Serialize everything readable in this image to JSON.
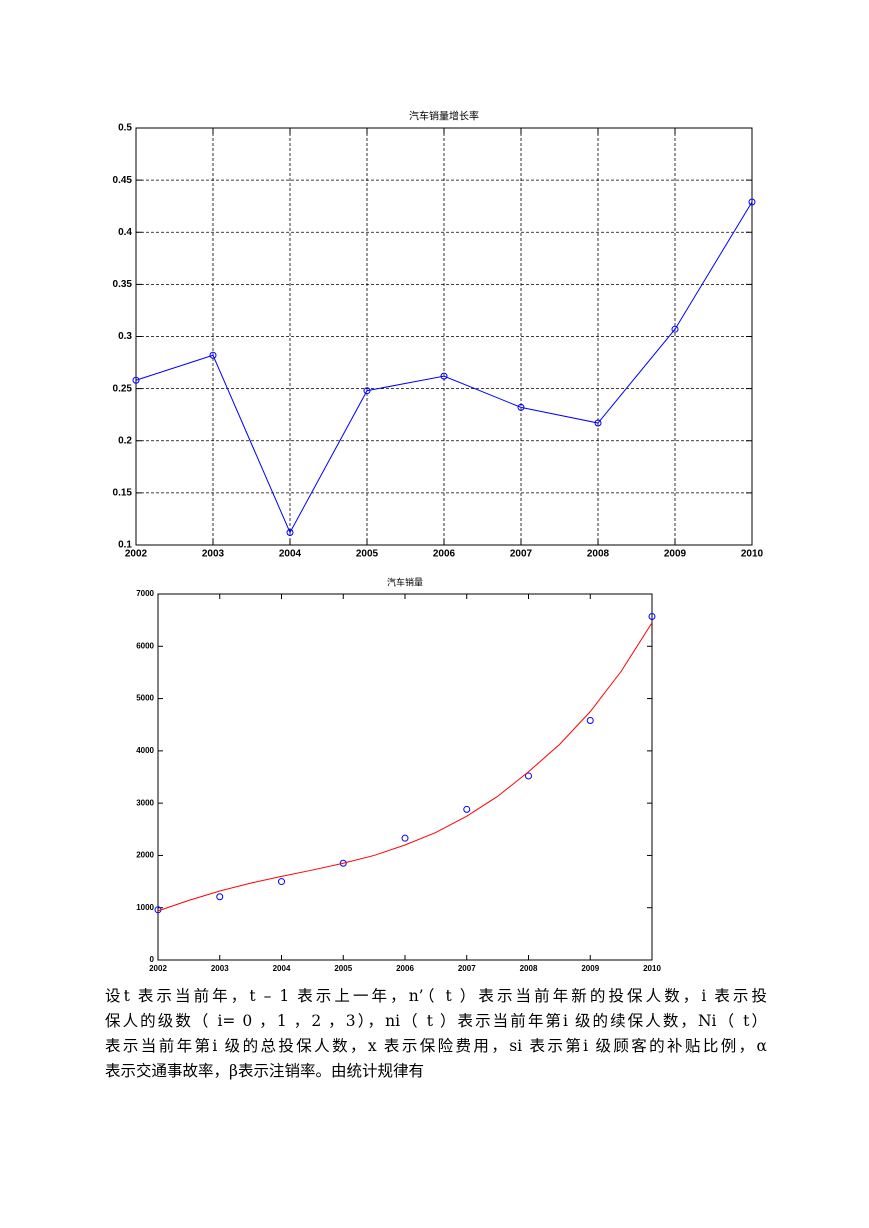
{
  "chart_data": [
    {
      "type": "line",
      "title": "汽车销量增长率",
      "x": [
        2002,
        2003,
        2004,
        2005,
        2006,
        2007,
        2008,
        2009,
        2010
      ],
      "series": [
        {
          "color": "#0000ff",
          "mode": "line-markers",
          "values": [
            0.258,
            0.282,
            0.112,
            0.248,
            0.262,
            0.232,
            0.217,
            0.307,
            0.429
          ]
        }
      ],
      "xlim": [
        2002,
        2010
      ],
      "xticks": [
        2002,
        2003,
        2004,
        2005,
        2006,
        2007,
        2008,
        2009,
        2010
      ],
      "ylim": [
        0.1,
        0.5
      ],
      "yticks": [
        0.1,
        0.15,
        0.2,
        0.25,
        0.3,
        0.35,
        0.4,
        0.45,
        0.5
      ],
      "grid": true
    },
    {
      "type": "scatter",
      "title": "汽车销量",
      "series": [
        {
          "color": "#0000ff",
          "mode": "markers",
          "x": [
            2002,
            2003,
            2004,
            2005,
            2006,
            2007,
            2008,
            2009,
            2010
          ],
          "values": [
            960,
            1210,
            1500,
            1850,
            2330,
            2880,
            3520,
            4580,
            6570
          ]
        },
        {
          "color": "#ff0000",
          "mode": "line",
          "x": [
            2002,
            2002.5,
            2003,
            2003.5,
            2004,
            2004.5,
            2005,
            2005.5,
            2006,
            2006.5,
            2007,
            2007.5,
            2008,
            2008.5,
            2009,
            2009.5,
            2010
          ],
          "values": [
            940,
            1140,
            1320,
            1470,
            1600,
            1720,
            1850,
            2000,
            2200,
            2440,
            2750,
            3130,
            3600,
            4120,
            4750,
            5520,
            6450
          ]
        }
      ],
      "xlim": [
        2002,
        2010
      ],
      "xticks": [
        2002,
        2003,
        2004,
        2005,
        2006,
        2007,
        2008,
        2009,
        2010
      ],
      "ylim": [
        0,
        7000
      ],
      "yticks": [
        0,
        1000,
        2000,
        3000,
        4000,
        5000,
        6000,
        7000
      ],
      "grid": false
    }
  ],
  "paragraph": {
    "lines": [
      "设t 表示当前年，t – 1 表示上一年，n’（ t ）表示当前年新的投保人数，i 表示投",
      "保人的级数（ i= 0 ，1 ，2 ，3），ni（ t ）表示当前年第i 级的续保人数，Ni（ t）",
      "表示当前年第i 级的总投保人数，x 表示保险费用，si 表示第i 级顾客的补贴比例，α",
      "表示交通事故率，β表示注销率。由统计规律有"
    ]
  }
}
